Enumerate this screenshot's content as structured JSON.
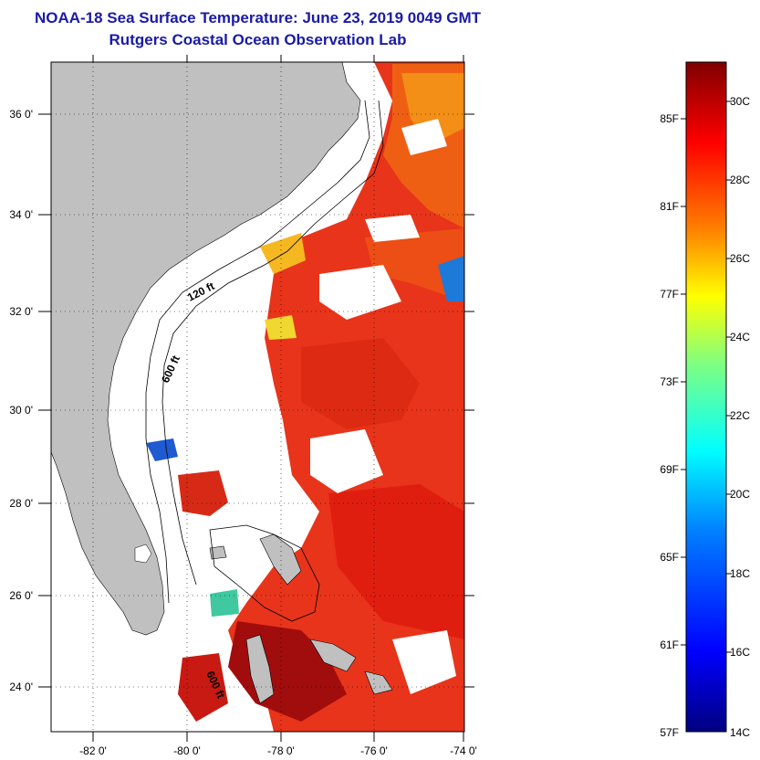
{
  "title": "NOAA-18 Sea Surface Temperature:  June 23, 2019 0049 GMT",
  "subtitle": "Rutgers Coastal Ocean Observation Lab",
  "axes": {
    "lat_labels": [
      "36 0'",
      "34 0'",
      "32 0'",
      "30 0'",
      "28 0'",
      "26 0'",
      "24 0'"
    ],
    "lon_labels": [
      "-82 0'",
      "-80 0'",
      "-78 0'",
      "-76 0'",
      "-74 0'"
    ]
  },
  "isobaths": [
    "120 ft",
    "600 ft",
    "600 ft"
  ],
  "colorbar": {
    "fahrenheit": [
      "85F",
      "81F",
      "77F",
      "73F",
      "69F",
      "65F",
      "61F",
      "57F"
    ],
    "celsius": [
      "30C",
      "28C",
      "26C",
      "24C",
      "22C",
      "20C",
      "18C",
      "16C",
      "14C"
    ],
    "colors": [
      "#00007f",
      "#0000ff",
      "#0080ff",
      "#00ffff",
      "#80ff80",
      "#ffff00",
      "#ff8000",
      "#ff0000",
      "#7f0000"
    ]
  },
  "palette": {
    "land": "#c0c0c0",
    "ocean_sst": "#e83010",
    "title": "#1a1aa8"
  }
}
